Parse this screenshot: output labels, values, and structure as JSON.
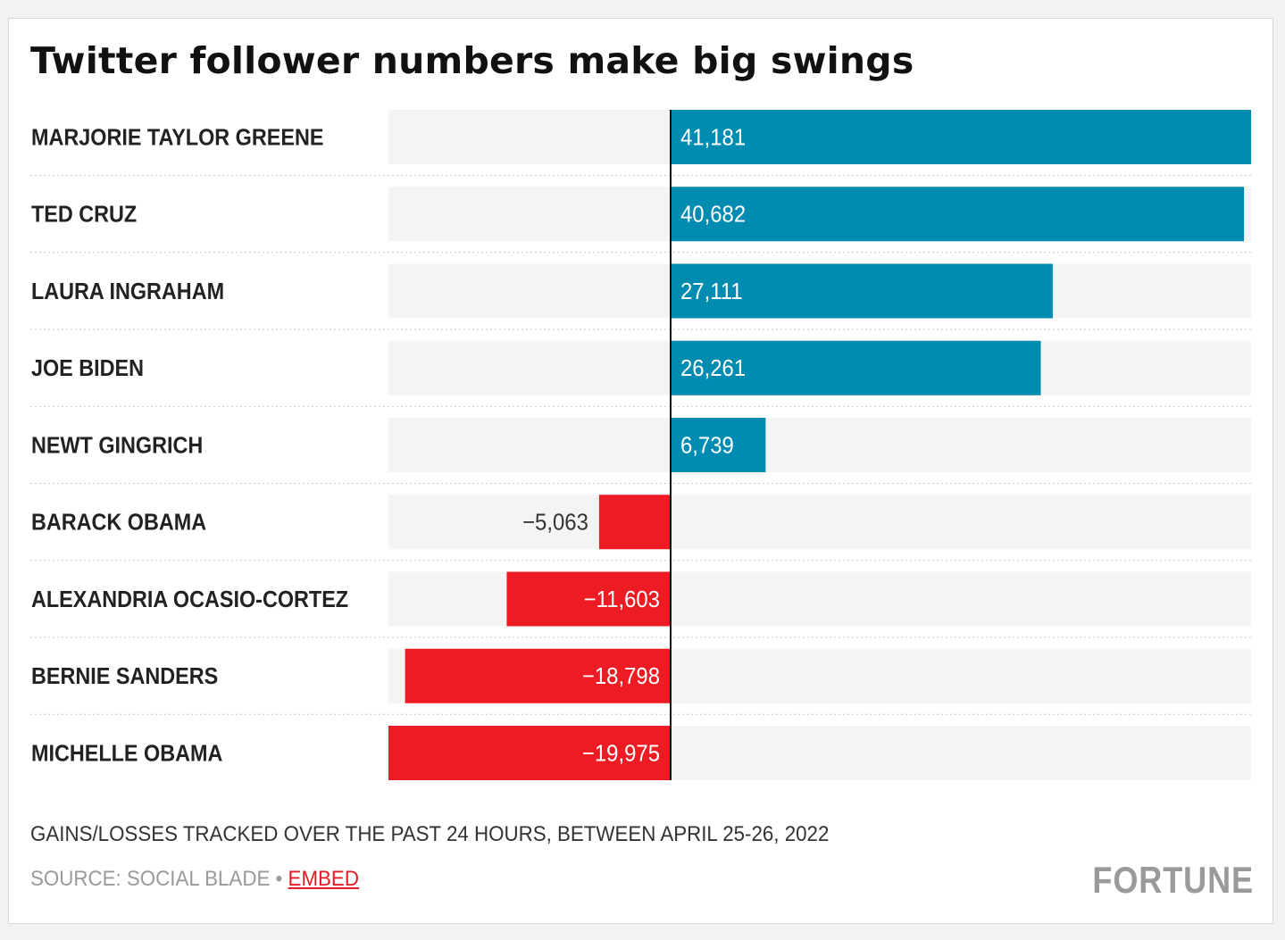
{
  "chart_data": {
    "type": "bar",
    "orientation": "horizontal",
    "title": "Twitter follower numbers make big swings",
    "categories": [
      "MARJORIE TAYLOR GREENE",
      "TED CRUZ",
      "LAURA INGRAHAM",
      "JOE BIDEN",
      "NEWT GINGRICH",
      "BARACK OBAMA",
      "ALEXANDRIA OCASIO-CORTEZ",
      "BERNIE SANDERS",
      "MICHELLE OBAMA"
    ],
    "values": [
      41181,
      40682,
      27111,
      26261,
      6739,
      -5063,
      -11603,
      -18798,
      -19975
    ],
    "value_labels": [
      "41,181",
      "40,682",
      "27,111",
      "26,261",
      "6,739",
      "−5,063",
      "−11,603",
      "−18,798",
      "−19,975"
    ],
    "xlim": [
      -19975,
      41181
    ],
    "grid": false,
    "colors": {
      "positive": "#008bb0",
      "negative": "#ed1c24",
      "track": "#f4f4f4",
      "zero_line": "#111111"
    }
  },
  "note": "GAINS/LOSSES TRACKED OVER THE PAST 24 HOURS, BETWEEN APRIL 25-26, 2022",
  "footer": {
    "source": "SOURCE: SOCIAL BLADE",
    "separator": "•",
    "embed_label": "EMBED",
    "brand": "FORTUNE"
  }
}
